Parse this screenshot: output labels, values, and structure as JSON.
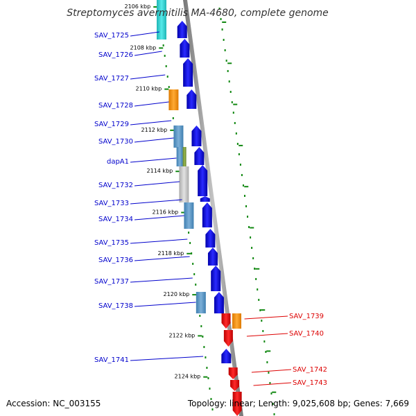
{
  "title": "Streptomyces avermitilis MA-4680, complete genome",
  "accession": "Accession: NC_003155",
  "summary": "Topology: linear; Length: 9,025,608 bp; Genes: 7,669",
  "colors": {
    "forward_gene": "#0000ee",
    "reverse_gene": "#ee0000",
    "forward_label": "#0000cc",
    "reverse_label": "#dd0000",
    "kbp_tick": "#118811",
    "backbone": "#888888"
  },
  "kbp_ticks": [
    "2106 kbp",
    "2108 kbp",
    "2110 kbp",
    "2112 kbp",
    "2114 kbp",
    "2116 kbp",
    "2118 kbp",
    "2120 kbp",
    "2122 kbp",
    "2124 kbp"
  ],
  "forward_genes": [
    "SAV_1725",
    "SAV_1726",
    "SAV_1727",
    "SAV_1728",
    "SAV_1729",
    "SAV_1730",
    "dapA1",
    "SAV_1732",
    "SAV_1733",
    "SAV_1734",
    "SAV_1735",
    "SAV_1736",
    "SAV_1737",
    "SAV_1738",
    "SAV_1741"
  ],
  "reverse_genes": [
    "SAV_1739",
    "SAV_1740",
    "SAV_1742",
    "SAV_1743"
  ]
}
